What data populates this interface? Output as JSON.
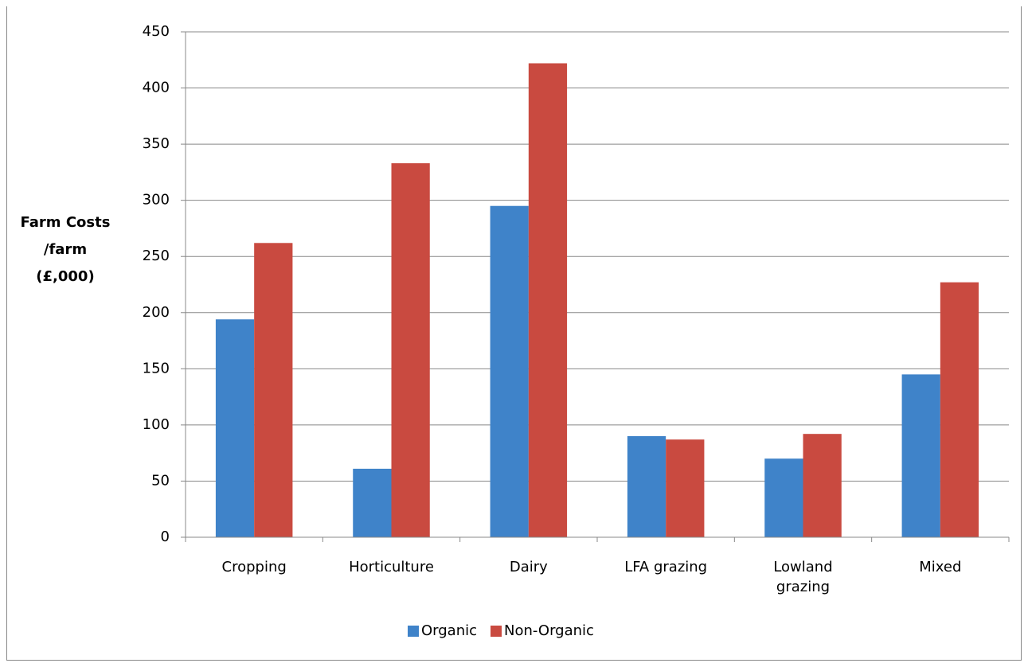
{
  "chart_data": {
    "type": "bar",
    "y_label": [
      "Farm Costs",
      "/farm",
      "(£,000)"
    ],
    "categories": [
      "Cropping",
      "Horticulture",
      "Dairy",
      "LFA grazing",
      "Lowland grazing",
      "Mixed"
    ],
    "series": [
      {
        "name": "Organic",
        "color": "#3f83c9",
        "values": [
          194,
          61,
          295,
          90,
          70,
          145
        ]
      },
      {
        "name": "Non-Organic",
        "color": "#c94a40",
        "values": [
          262,
          333,
          422,
          87,
          92,
          227
        ]
      }
    ],
    "ylim": [
      0,
      450
    ],
    "yticks": [
      0,
      50,
      100,
      150,
      200,
      250,
      300,
      350,
      400,
      450
    ],
    "grid": true,
    "legend": "bottom"
  }
}
